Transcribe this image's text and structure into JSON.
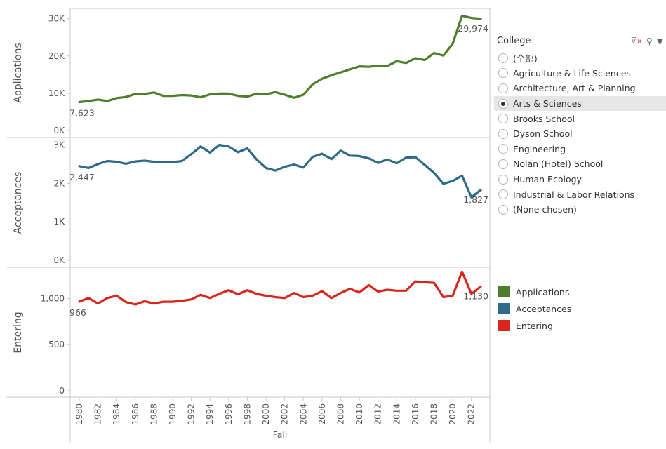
{
  "chart_data": {
    "type": "line",
    "xlabel": "Fall",
    "x": [
      1980,
      1981,
      1982,
      1983,
      1984,
      1985,
      1986,
      1987,
      1988,
      1989,
      1990,
      1991,
      1992,
      1993,
      1994,
      1995,
      1996,
      1997,
      1998,
      1999,
      2000,
      2001,
      2002,
      2003,
      2004,
      2005,
      2006,
      2007,
      2008,
      2009,
      2010,
      2011,
      2012,
      2013,
      2014,
      2015,
      2016,
      2017,
      2018,
      2019,
      2020,
      2021,
      2022,
      2023
    ],
    "x_ticks": [
      "1980",
      "1982",
      "1984",
      "1986",
      "1988",
      "1990",
      "1992",
      "1994",
      "1996",
      "1998",
      "2000",
      "2002",
      "2004",
      "2006",
      "2008",
      "2010",
      "2012",
      "2014",
      "2016",
      "2018",
      "2020",
      "2022"
    ],
    "series": [
      {
        "name": "Applications",
        "ylabel": "Applications",
        "color": "#4e7d2c",
        "ylim": [
          0,
          32000
        ],
        "yticks": [
          0,
          10000,
          20000,
          30000
        ],
        "ytick_labels": [
          "0K",
          "10K",
          "20K",
          "30K"
        ],
        "first_label": "7,623",
        "last_label": "29,974",
        "values": [
          7623,
          7900,
          8300,
          7900,
          8700,
          9000,
          9800,
          9800,
          10200,
          9300,
          9300,
          9500,
          9400,
          8900,
          9700,
          9900,
          9900,
          9300,
          9100,
          9900,
          9700,
          10300,
          9600,
          8800,
          9600,
          12400,
          13900,
          14800,
          15600,
          16400,
          17200,
          17100,
          17400,
          17300,
          18600,
          18100,
          19400,
          18900,
          20800,
          20100,
          23300,
          30800,
          30200,
          29974
        ]
      },
      {
        "name": "Acceptances",
        "ylabel": "Acceptances",
        "color": "#2e6b8a",
        "ylim": [
          0,
          3100
        ],
        "yticks": [
          0,
          1000,
          2000,
          3000
        ],
        "ytick_labels": [
          "0K",
          "1K",
          "2K",
          "3K"
        ],
        "first_label": "2,447",
        "last_label": "1,827",
        "values": [
          2447,
          2400,
          2500,
          2580,
          2560,
          2510,
          2570,
          2590,
          2560,
          2550,
          2550,
          2580,
          2760,
          2960,
          2800,
          3000,
          2960,
          2810,
          2910,
          2620,
          2400,
          2330,
          2430,
          2490,
          2410,
          2690,
          2770,
          2630,
          2850,
          2720,
          2710,
          2650,
          2530,
          2620,
          2520,
          2670,
          2680,
          2480,
          2270,
          1990,
          2060,
          2200,
          1640,
          1827
        ]
      },
      {
        "name": "Entering",
        "ylabel": "Entering",
        "color": "#d9261c",
        "ylim": [
          0,
          1300
        ],
        "yticks": [
          0,
          500,
          1000
        ],
        "ytick_labels": [
          "0",
          "500",
          "1,000"
        ],
        "first_label": "966",
        "last_label": "1,130",
        "values": [
          966,
          1005,
          945,
          1005,
          1030,
          960,
          935,
          970,
          945,
          965,
          965,
          975,
          990,
          1040,
          1005,
          1050,
          1090,
          1045,
          1090,
          1050,
          1030,
          1015,
          1005,
          1060,
          1015,
          1030,
          1080,
          1005,
          1060,
          1105,
          1065,
          1145,
          1075,
          1095,
          1085,
          1085,
          1185,
          1175,
          1170,
          1015,
          1030,
          1290,
          1050,
          1130
        ]
      }
    ]
  },
  "filter": {
    "title": "College",
    "icons": [
      "filter-clear-icon",
      "search-icon",
      "dropdown-arrow-icon"
    ],
    "options": [
      "(全部)",
      "Agriculture & Life Sciences",
      "Architecture, Art & Planning",
      "Arts & Sciences",
      "Brooks School",
      "Dyson School",
      "Engineering",
      "Nolan (Hotel) School",
      "Human Ecology",
      "Industrial & Labor Relations",
      "(None chosen)"
    ],
    "selected_index": 3
  },
  "legend": [
    {
      "label": "Applications",
      "color": "#4e7d2c"
    },
    {
      "label": "Acceptances",
      "color": "#2e6b8a"
    },
    {
      "label": "Entering",
      "color": "#d9261c"
    }
  ]
}
